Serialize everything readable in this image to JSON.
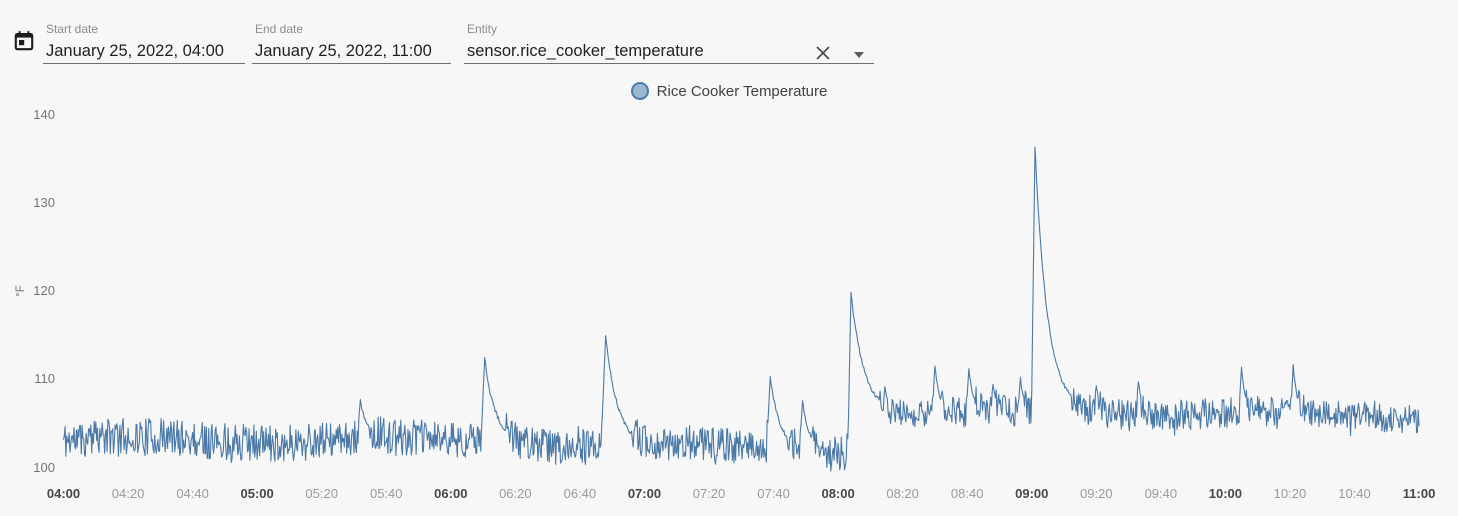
{
  "filters": {
    "calendar_button": {
      "icon": "calendar-icon"
    },
    "start_date": {
      "label": "Start date",
      "value": "January 25, 2022, 04:00"
    },
    "end_date": {
      "label": "End date",
      "value": "January 25, 2022, 11:00"
    },
    "entity": {
      "label": "Entity",
      "value": "sensor.rice_cooker_temperature",
      "clear_icon": "close-icon",
      "dropdown_icon": "chevron-down-icon"
    }
  },
  "legend": {
    "position": "top-center",
    "items": [
      {
        "label": "Rice Cooker Temperature",
        "stroke": "#4a79a8",
        "fill": "#9ab7d0"
      }
    ]
  },
  "chart_data": {
    "type": "line",
    "title": "",
    "ylabel": "°F",
    "xlabel": "",
    "grid": false,
    "legend_position": "top-center",
    "x_ticks": [
      "04:00",
      "04:20",
      "04:40",
      "05:00",
      "05:20",
      "05:40",
      "06:00",
      "06:20",
      "06:40",
      "07:00",
      "07:20",
      "07:40",
      "08:00",
      "08:20",
      "08:40",
      "09:00",
      "09:20",
      "09:40",
      "10:00",
      "10:20",
      "10:40",
      "11:00"
    ],
    "y_ticks": [
      100,
      110,
      120,
      130,
      140
    ],
    "ylim": [
      99,
      141
    ],
    "xlim_minutes": [
      0,
      420
    ],
    "noise_seed": 11,
    "series": [
      {
        "name": "Rice Cooker Temperature",
        "unit": "°F",
        "color": "#4a79a8",
        "sample_step_minutes": 0.25,
        "baseline_keyframes": [
          [
            0,
            103.1
          ],
          [
            90,
            102.9
          ],
          [
            180,
            102.3
          ],
          [
            242,
            101.9
          ],
          [
            245.5,
            106.1
          ],
          [
            300,
            106.2
          ],
          [
            306,
            106.6
          ],
          [
            420,
            106.0
          ]
        ],
        "noise_amplitude_keyframes": [
          [
            0,
            2.2
          ],
          [
            240,
            1.9
          ],
          [
            245,
            1.8
          ],
          [
            420,
            1.65
          ]
        ],
        "spikes_t_peak_rise_tau": [
          [
            92,
            107.5,
            1.0,
            2.5
          ],
          [
            130.5,
            112.3,
            1.2,
            3.5
          ],
          [
            168,
            114.8,
            1.5,
            3.8
          ],
          [
            219,
            110.2,
            1.2,
            3.0
          ],
          [
            229,
            107.5,
            1.0,
            2.0
          ],
          [
            244,
            120.0,
            0.9,
            4.0
          ],
          [
            254.5,
            109.0,
            0.8,
            1.5
          ],
          [
            270,
            111.6,
            0.8,
            1.5
          ],
          [
            280.5,
            111.2,
            0.8,
            1.5
          ],
          [
            288,
            109.5,
            0.8,
            1.2
          ],
          [
            296.5,
            110.2,
            0.8,
            1.0
          ],
          [
            301,
            136.5,
            1.1,
            3.8
          ],
          [
            320,
            109.2,
            0.8,
            1.2
          ],
          [
            333,
            109.8,
            0.8,
            1.2
          ],
          [
            365,
            111.2,
            0.8,
            1.2
          ],
          [
            381,
            111.5,
            0.8,
            1.2
          ]
        ]
      }
    ]
  }
}
